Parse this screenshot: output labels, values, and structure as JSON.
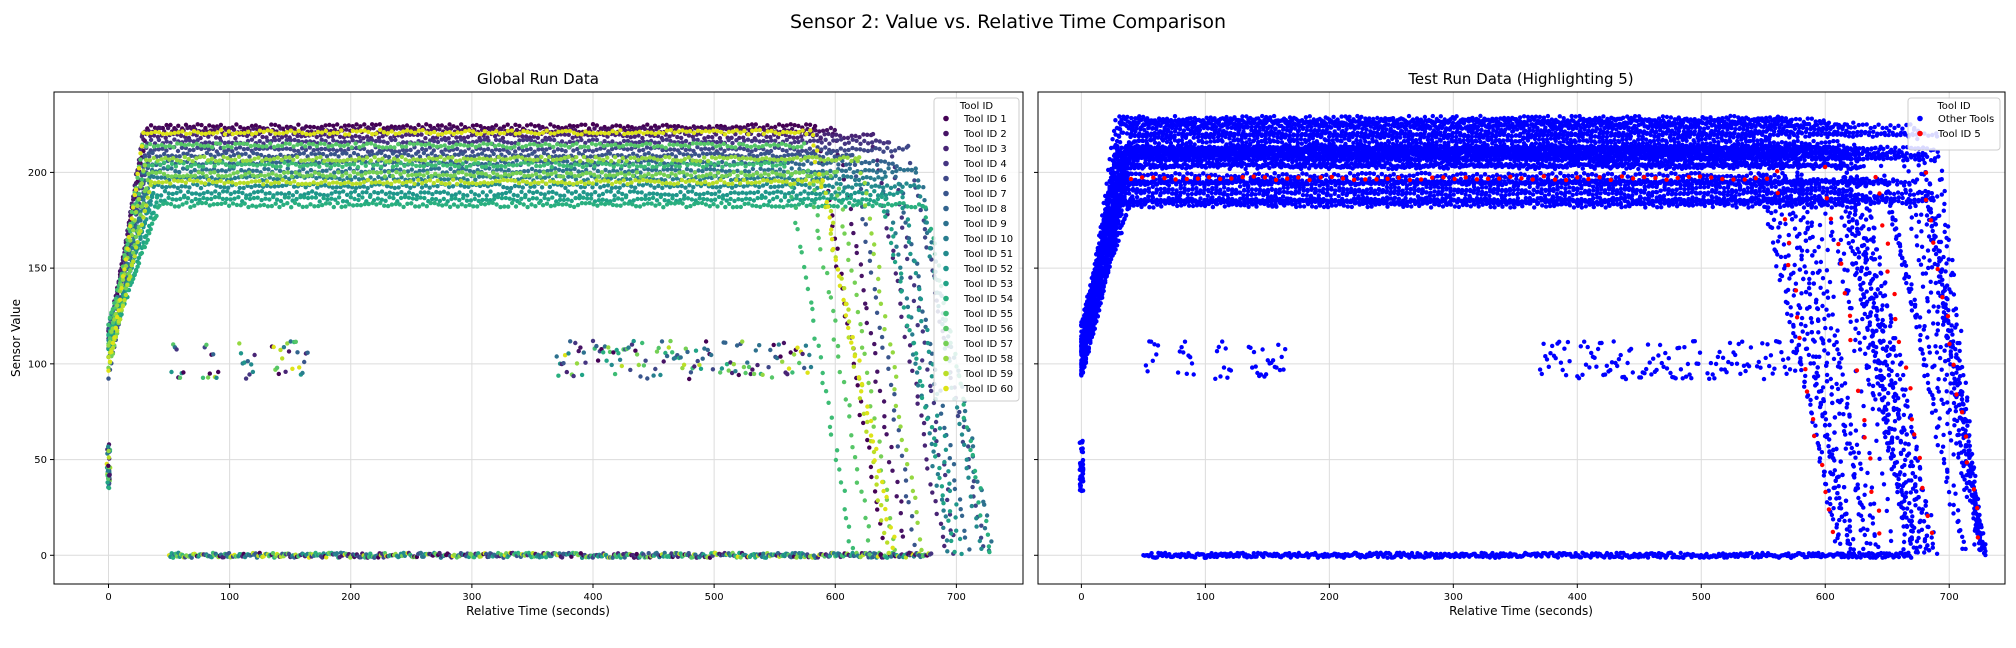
{
  "figure_title": "Sensor 2: Value vs. Relative Time Comparison",
  "chart_data": [
    {
      "type": "scatter",
      "title": "Global Run Data",
      "xlabel": "Relative Time (seconds)",
      "ylabel": "Sensor Value",
      "xlim": [
        -45,
        755
      ],
      "ylim": [
        -15,
        242
      ],
      "xticks": [
        "0",
        "100",
        "200",
        "300",
        "400",
        "500",
        "600",
        "700"
      ],
      "yticks": [
        "0",
        "50",
        "100",
        "150",
        "200"
      ],
      "grid": true,
      "legend": {
        "title": "Tool ID",
        "placement": "top-right",
        "entries": [
          {
            "label": "Tool ID 1",
            "color": "#440154"
          },
          {
            "label": "Tool ID 2",
            "color": "#471365"
          },
          {
            "label": "Tool ID 3",
            "color": "#482475"
          },
          {
            "label": "Tool ID 4",
            "color": "#453581"
          },
          {
            "label": "Tool ID 6",
            "color": "#3f4788"
          },
          {
            "label": "Tool ID 7",
            "color": "#39558c"
          },
          {
            "label": "Tool ID 8",
            "color": "#32648e"
          },
          {
            "label": "Tool ID 9",
            "color": "#2d718e"
          },
          {
            "label": "Tool ID 10",
            "color": "#287d8e"
          },
          {
            "label": "Tool ID 51",
            "color": "#238a8d"
          },
          {
            "label": "Tool ID 52",
            "color": "#1f968b"
          },
          {
            "label": "Tool ID 53",
            "color": "#20a386"
          },
          {
            "label": "Tool ID 54",
            "color": "#29af7f"
          },
          {
            "label": "Tool ID 55",
            "color": "#3dbc74"
          },
          {
            "label": "Tool ID 56",
            "color": "#56c667"
          },
          {
            "label": "Tool ID 57",
            "color": "#75d054"
          },
          {
            "label": "Tool ID 58",
            "color": "#95d840"
          },
          {
            "label": "Tool ID 59",
            "color": "#bade28"
          },
          {
            "label": "Tool ID 60",
            "color": "#dde318"
          }
        ]
      },
      "series_profiles": [
        {
          "name": "Tool ID 1",
          "plateau": 224,
          "ramp_end": 32,
          "plateau_end": 585,
          "descent_end": 640
        },
        {
          "name": "Tool ID 2",
          "plateau": 222,
          "ramp_end": 30,
          "plateau_end": 600,
          "descent_end": 660
        },
        {
          "name": "Tool ID 3",
          "plateau": 219,
          "ramp_end": 28,
          "plateau_end": 630,
          "descent_end": 690
        },
        {
          "name": "Tool ID 4",
          "plateau": 216,
          "ramp_end": 32,
          "plateau_end": 645,
          "descent_end": 700
        },
        {
          "name": "Tool ID 6",
          "plateau": 212,
          "ramp_end": 35,
          "plateau_end": 660,
          "descent_end": 725
        },
        {
          "name": "Tool ID 7",
          "plateau": 209,
          "ramp_end": 30,
          "plateau_end": 615,
          "descent_end": 668
        },
        {
          "name": "Tool ID 8",
          "plateau": 205,
          "ramp_end": 33,
          "plateau_end": 650,
          "descent_end": 710
        },
        {
          "name": "Tool ID 9",
          "plateau": 201,
          "ramp_end": 36,
          "plateau_end": 668,
          "descent_end": 730
        },
        {
          "name": "Tool ID 10",
          "plateau": 197,
          "ramp_end": 34,
          "plateau_end": 640,
          "descent_end": 695
        },
        {
          "name": "Tool ID 51",
          "plateau": 193,
          "ramp_end": 38,
          "plateau_end": 670,
          "descent_end": 720
        },
        {
          "name": "Tool ID 52",
          "plateau": 189,
          "ramp_end": 37,
          "plateau_end": 655,
          "descent_end": 705
        },
        {
          "name": "Tool ID 53",
          "plateau": 186,
          "ramp_end": 40,
          "plateau_end": 640,
          "descent_end": 700
        },
        {
          "name": "Tool ID 54",
          "plateau": 183,
          "ramp_end": 42,
          "plateau_end": 675,
          "descent_end": 728
        },
        {
          "name": "Tool ID 55",
          "plateau": 204,
          "ramp_end": 30,
          "plateau_end": 560,
          "descent_end": 615
        },
        {
          "name": "Tool ID 56",
          "plateau": 214,
          "ramp_end": 28,
          "plateau_end": 575,
          "descent_end": 630
        },
        {
          "name": "Tool ID 57",
          "plateau": 199,
          "ramp_end": 33,
          "plateau_end": 600,
          "descent_end": 650
        },
        {
          "name": "Tool ID 58",
          "plateau": 207,
          "ramp_end": 31,
          "plateau_end": 620,
          "descent_end": 672
        },
        {
          "name": "Tool ID 59",
          "plateau": 195,
          "ramp_end": 35,
          "plateau_end": 590,
          "descent_end": 645
        },
        {
          "name": "Tool ID 60",
          "plateau": 221,
          "ramp_end": 29,
          "plateau_end": 580,
          "descent_end": 650
        }
      ],
      "baseline_segment": {
        "x": [
          50,
          680
        ],
        "y": 0
      },
      "initial_cluster": {
        "x": 0,
        "y": [
          35,
          58
        ]
      },
      "mid_clusters_y": [
        92,
        112
      ]
    },
    {
      "type": "scatter",
      "title": "Test Run Data (Highlighting 5)",
      "xlabel": "Relative Time (seconds)",
      "ylabel": "",
      "xlim": [
        -35,
        745
      ],
      "ylim": [
        -15,
        242
      ],
      "xticks": [
        "0",
        "100",
        "200",
        "300",
        "400",
        "500",
        "600",
        "700"
      ],
      "yticks": [
        "0",
        "50",
        "100",
        "150",
        "200"
      ],
      "grid": true,
      "legend": {
        "title": "Tool ID",
        "placement": "top-right",
        "entries": [
          {
            "label": "Other Tools",
            "color": "#0000ff"
          },
          {
            "label": "Tool ID 5",
            "color": "#ff0000"
          }
        ]
      },
      "series_profiles": {
        "other_tools": {
          "plateau_range": [
            182,
            229
          ],
          "plateau_end_range": [
            540,
            695
          ],
          "descent_end_range": [
            600,
            728
          ]
        },
        "tool_id_5": {
          "plateau": 197,
          "plateau_end": 560,
          "descent_end": 700
        }
      },
      "baseline_segment": {
        "x": [
          50,
          670
        ],
        "y": 0
      },
      "initial_cluster": {
        "x": 0,
        "y": [
          33,
          60
        ]
      },
      "mid_clusters_y": [
        92,
        112
      ]
    }
  ]
}
